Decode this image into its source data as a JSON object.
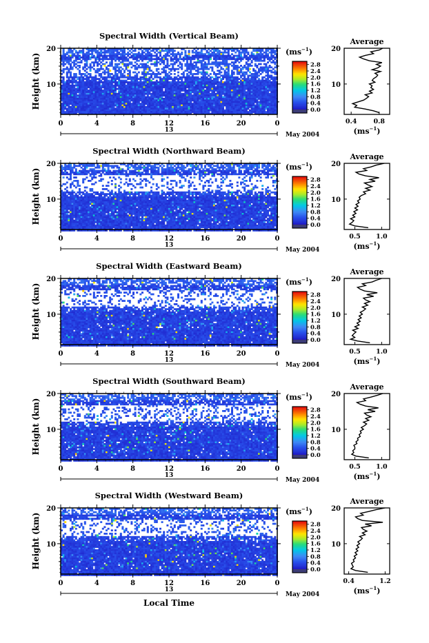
{
  "x_axis_label": "Local Time",
  "chart_data": [
    {
      "type": "heatmap",
      "title": "Spectral Width (Vertical Beam)",
      "ylabel": "Height (km)",
      "xticks": [
        "0",
        "4",
        "8",
        "12",
        "16",
        "20",
        "0"
      ],
      "date_marker": "13",
      "date_text": "May 2004",
      "colorbar": {
        "unit": "(ms",
        "unit_sup": "−1",
        "unit_end": ")",
        "ticks": [
          "0.0",
          "0.4",
          "0.8",
          "1.2",
          "1.6",
          "2.0",
          "2.4",
          "2.8"
        ],
        "range": [
          0,
          3.0
        ]
      },
      "xlim": [
        0,
        24
      ],
      "ylim": [
        1.5,
        20
      ],
      "profile": {
        "title": "Average",
        "xlabel": "(ms",
        "xlabel_sup": "−1",
        "xlabel_end": ")",
        "xticks": [
          "0.4",
          "0.8"
        ],
        "xtick_values": [
          0.4,
          0.8
        ],
        "xlim": [
          0.3,
          0.95
        ],
        "yticks": [
          "10",
          "20"
        ],
        "ylim": [
          1.5,
          20
        ],
        "heights": [
          2,
          2.5,
          3,
          3.5,
          4,
          4.5,
          5,
          5.5,
          6,
          6.5,
          7,
          7.5,
          8,
          8.5,
          9,
          9.5,
          10,
          10.5,
          11,
          11.5,
          12,
          12.5,
          13,
          13.5,
          14,
          14.5,
          15,
          15.5,
          16,
          16.5,
          17,
          17.5,
          18,
          18.5,
          19,
          19.5,
          20
        ],
        "values": [
          0.8,
          0.72,
          0.6,
          0.45,
          0.48,
          0.42,
          0.5,
          0.58,
          0.62,
          0.65,
          0.6,
          0.7,
          0.66,
          0.72,
          0.68,
          0.7,
          0.66,
          0.74,
          0.7,
          0.72,
          0.76,
          0.78,
          0.74,
          0.82,
          0.7,
          0.78,
          0.82,
          0.76,
          0.84,
          0.66,
          0.58,
          0.52,
          0.6,
          0.72,
          0.68,
          0.8,
          0.85
        ]
      }
    },
    {
      "type": "heatmap",
      "title": "Spectral Width (Northward Beam)",
      "ylabel": "Height (km)",
      "xticks": [
        "0",
        "4",
        "8",
        "12",
        "16",
        "20",
        "0"
      ],
      "date_marker": "13",
      "date_text": "May 2004",
      "colorbar": {
        "unit": "(ms",
        "unit_sup": "−1",
        "unit_end": ")",
        "ticks": [
          "0.0",
          "0.4",
          "0.8",
          "1.2",
          "1.6",
          "2.0",
          "2.4",
          "2.8"
        ],
        "range": [
          0,
          3.0
        ]
      },
      "xlim": [
        0,
        24
      ],
      "ylim": [
        1.5,
        20
      ],
      "profile": {
        "title": "Average",
        "xlabel": "(ms",
        "xlabel_sup": "−1",
        "xlabel_end": ")",
        "xticks": [
          "0.5",
          "1.0"
        ],
        "xtick_values": [
          0.5,
          1.0
        ],
        "xlim": [
          0.3,
          1.15
        ],
        "yticks": [
          "10",
          "20"
        ],
        "ylim": [
          1.5,
          20
        ],
        "heights": [
          2,
          2.5,
          3,
          3.5,
          4,
          4.5,
          5,
          5.5,
          6,
          6.5,
          7,
          7.5,
          8,
          8.5,
          9,
          9.5,
          10,
          10.5,
          11,
          11.5,
          12,
          12.5,
          13,
          13.5,
          14,
          14.5,
          15,
          15.5,
          16,
          16.5,
          17,
          17.5,
          18,
          18.5,
          19,
          19.5,
          20
        ],
        "values": [
          0.75,
          0.5,
          0.4,
          0.45,
          0.48,
          0.42,
          0.5,
          0.46,
          0.52,
          0.48,
          0.55,
          0.5,
          0.56,
          0.52,
          0.58,
          0.55,
          0.6,
          0.58,
          0.62,
          0.7,
          0.66,
          0.78,
          0.7,
          0.82,
          0.74,
          0.68,
          0.88,
          0.78,
          0.95,
          0.7,
          0.58,
          0.52,
          0.72,
          0.66,
          0.8,
          0.9,
          1.05
        ]
      }
    },
    {
      "type": "heatmap",
      "title": "Spectral Width (Eastward Beam)",
      "ylabel": "Height (km)",
      "xticks": [
        "0",
        "4",
        "8",
        "12",
        "16",
        "20",
        "0"
      ],
      "date_marker": "13",
      "date_text": "May 2004",
      "colorbar": {
        "unit": "(ms",
        "unit_sup": "−1",
        "unit_end": ")",
        "ticks": [
          "0.0",
          "0.4",
          "0.8",
          "1.2",
          "1.6",
          "2.0",
          "2.4",
          "2.8"
        ],
        "range": [
          0,
          3.0
        ]
      },
      "xlim": [
        0,
        24
      ],
      "ylim": [
        1.5,
        20
      ],
      "profile": {
        "title": "Average",
        "xlabel": "(ms",
        "xlabel_sup": "−1",
        "xlabel_end": ")",
        "xticks": [
          "0.5",
          "1.0"
        ],
        "xtick_values": [
          0.5,
          1.0
        ],
        "xlim": [
          0.3,
          1.15
        ],
        "yticks": [
          "10",
          "20"
        ],
        "ylim": [
          1.5,
          20
        ],
        "heights": [
          2,
          2.5,
          3,
          3.5,
          4,
          4.5,
          5,
          5.5,
          6,
          6.5,
          7,
          7.5,
          8,
          8.5,
          9,
          9.5,
          10,
          10.5,
          11,
          11.5,
          12,
          12.5,
          13,
          13.5,
          14,
          14.5,
          15,
          15.5,
          16,
          16.5,
          17,
          17.5,
          18,
          18.5,
          19,
          19.5,
          20
        ],
        "values": [
          0.78,
          0.55,
          0.42,
          0.5,
          0.45,
          0.48,
          0.52,
          0.46,
          0.56,
          0.5,
          0.58,
          0.54,
          0.6,
          0.56,
          0.62,
          0.58,
          0.64,
          0.6,
          0.66,
          0.7,
          0.64,
          0.74,
          0.68,
          0.78,
          0.7,
          0.66,
          0.85,
          0.72,
          0.92,
          0.68,
          0.6,
          0.55,
          0.7,
          0.64,
          0.82,
          0.9,
          1.0
        ]
      }
    },
    {
      "type": "heatmap",
      "title": "Spectral Width (Southward Beam)",
      "ylabel": "Height (km)",
      "xticks": [
        "0",
        "4",
        "8",
        "12",
        "16",
        "20",
        "0"
      ],
      "date_marker": "13",
      "date_text": "May 2004",
      "colorbar": {
        "unit": "(ms",
        "unit_sup": "−1",
        "unit_end": ")",
        "ticks": [
          "0.0",
          "0.4",
          "0.8",
          "1.2",
          "1.6",
          "2.0",
          "2.4",
          "2.8"
        ],
        "range": [
          0,
          3.0
        ]
      },
      "xlim": [
        0,
        24
      ],
      "ylim": [
        1.5,
        20
      ],
      "profile": {
        "title": "Average",
        "xlabel": "(ms",
        "xlabel_sup": "−1",
        "xlabel_end": ")",
        "xticks": [
          "0.5",
          "1.0"
        ],
        "xtick_values": [
          0.5,
          1.0
        ],
        "xlim": [
          0.3,
          1.15
        ],
        "yticks": [
          "10",
          "20"
        ],
        "ylim": [
          1.5,
          20
        ],
        "heights": [
          2,
          2.5,
          3,
          3.5,
          4,
          4.5,
          5,
          5.5,
          6,
          6.5,
          7,
          7.5,
          8,
          8.5,
          9,
          9.5,
          10,
          10.5,
          11,
          11.5,
          12,
          12.5,
          13,
          13.5,
          14,
          14.5,
          15,
          15.5,
          16,
          16.5,
          17,
          17.5,
          18,
          18.5,
          19,
          19.5,
          20
        ],
        "values": [
          0.76,
          0.52,
          0.44,
          0.48,
          0.46,
          0.5,
          0.5,
          0.48,
          0.54,
          0.52,
          0.56,
          0.55,
          0.6,
          0.58,
          0.62,
          0.6,
          0.66,
          0.62,
          0.68,
          0.72,
          0.66,
          0.76,
          0.7,
          0.8,
          0.72,
          0.68,
          0.88,
          0.74,
          0.94,
          0.7,
          0.6,
          0.54,
          0.7,
          0.66,
          0.8,
          0.92,
          1.02
        ]
      }
    },
    {
      "type": "heatmap",
      "title": "Spectral Width (Westward Beam)",
      "ylabel": "Height (km)",
      "xticks": [
        "0",
        "4",
        "8",
        "12",
        "16",
        "20",
        "0"
      ],
      "date_marker": "13",
      "date_text": "May 2004",
      "colorbar": {
        "unit": "(ms",
        "unit_sup": "−1",
        "unit_end": ")",
        "ticks": [
          "0.0",
          "0.4",
          "0.8",
          "1.2",
          "1.6",
          "2.0",
          "2.4",
          "2.8"
        ],
        "range": [
          0,
          3.0
        ]
      },
      "xlim": [
        0,
        24
      ],
      "ylim": [
        1.5,
        20
      ],
      "profile": {
        "title": "Average",
        "xlabel": "(ms",
        "xlabel_sup": "−1",
        "xlabel_end": ")",
        "xticks": [
          "0.4",
          "1.2"
        ],
        "xtick_values": [
          0.4,
          1.2
        ],
        "xlim": [
          0.3,
          1.3
        ],
        "yticks": [
          "10",
          "20"
        ],
        "ylim": [
          1.5,
          20
        ],
        "heights": [
          2,
          2.5,
          3,
          3.5,
          4,
          4.5,
          5,
          5.5,
          6,
          6.5,
          7,
          7.5,
          8,
          8.5,
          9,
          9.5,
          10,
          10.5,
          11,
          11.5,
          12,
          12.5,
          13,
          13.5,
          14,
          14.5,
          15,
          15.5,
          16,
          16.5,
          17,
          17.5,
          18,
          18.5,
          19,
          19.5,
          20
        ],
        "values": [
          0.82,
          0.55,
          0.45,
          0.5,
          0.48,
          0.46,
          0.52,
          0.5,
          0.55,
          0.52,
          0.58,
          0.54,
          0.6,
          0.56,
          0.62,
          0.58,
          0.64,
          0.6,
          0.66,
          0.7,
          0.64,
          0.76,
          0.7,
          0.8,
          0.72,
          0.68,
          0.9,
          0.76,
          1.15,
          0.7,
          0.6,
          0.55,
          0.72,
          0.66,
          0.84,
          1.0,
          1.2
        ]
      }
    }
  ]
}
